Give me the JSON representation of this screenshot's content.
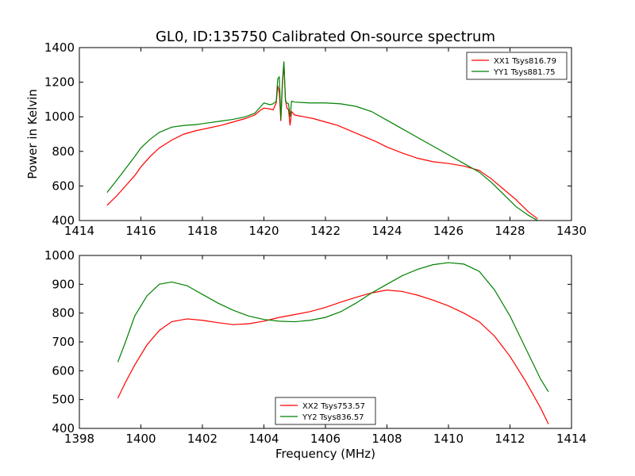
{
  "chart_data": [
    {
      "type": "line",
      "title": "GL0, ID:135750 Calibrated On-source spectrum",
      "xlabel": "",
      "ylabel": "Power in Kelvin",
      "xlim": [
        1414,
        1430
      ],
      "ylim": [
        400,
        1400
      ],
      "xticks": [
        1414,
        1416,
        1418,
        1420,
        1422,
        1424,
        1426,
        1428,
        1430
      ],
      "yticks": [
        400,
        600,
        800,
        1000,
        1200,
        1400
      ],
      "grid": false,
      "legend_position": "top-right",
      "series": [
        {
          "name": "XX1 Tsys816.79",
          "color": "#ff0000",
          "x": [
            1414.9,
            1415.2,
            1415.5,
            1415.8,
            1416.0,
            1416.3,
            1416.6,
            1417.0,
            1417.4,
            1417.8,
            1418.2,
            1418.6,
            1419.0,
            1419.4,
            1419.7,
            1419.9,
            1420.0,
            1420.2,
            1420.3,
            1420.4,
            1420.45,
            1420.5,
            1420.55,
            1420.6,
            1420.65,
            1420.7,
            1420.75,
            1420.8,
            1420.85,
            1420.9,
            1421.0,
            1421.3,
            1421.6,
            1422.0,
            1422.4,
            1422.8,
            1423.2,
            1423.6,
            1424.0,
            1424.5,
            1425.0,
            1425.5,
            1426.0,
            1426.5,
            1427.0,
            1427.4,
            1427.8,
            1428.2,
            1428.6,
            1428.9
          ],
          "y": [
            488,
            540,
            600,
            660,
            710,
            770,
            820,
            865,
            900,
            920,
            935,
            950,
            970,
            990,
            1010,
            1040,
            1050,
            1045,
            1040,
            1080,
            1180,
            1140,
            975,
            1180,
            1310,
            1100,
            1050,
            1040,
            950,
            1030,
            1010,
            1000,
            990,
            970,
            950,
            920,
            890,
            860,
            825,
            790,
            760,
            740,
            730,
            715,
            690,
            640,
            580,
            520,
            450,
            410
          ]
        },
        {
          "name": "YY1 Tsys881.75",
          "color": "#008000",
          "x": [
            1414.9,
            1415.2,
            1415.5,
            1415.8,
            1416.0,
            1416.3,
            1416.6,
            1417.0,
            1417.4,
            1417.8,
            1418.2,
            1418.6,
            1419.0,
            1419.4,
            1419.7,
            1419.9,
            1420.0,
            1420.2,
            1420.3,
            1420.4,
            1420.45,
            1420.5,
            1420.55,
            1420.6,
            1420.65,
            1420.7,
            1420.75,
            1420.8,
            1420.85,
            1420.9,
            1421.0,
            1421.5,
            1422.0,
            1422.5,
            1423.0,
            1423.5,
            1424.0,
            1424.5,
            1425.0,
            1425.5,
            1426.0,
            1426.5,
            1427.0,
            1427.4,
            1427.8,
            1428.2,
            1428.6,
            1428.9
          ],
          "y": [
            562,
            630,
            700,
            770,
            820,
            870,
            910,
            940,
            950,
            955,
            965,
            975,
            985,
            1000,
            1020,
            1060,
            1080,
            1070,
            1075,
            1090,
            1220,
            1230,
            985,
            1200,
            1320,
            1090,
            1080,
            1075,
            1000,
            1090,
            1085,
            1080,
            1080,
            1075,
            1060,
            1030,
            980,
            930,
            880,
            830,
            780,
            730,
            680,
            620,
            550,
            480,
            430,
            400
          ]
        }
      ]
    },
    {
      "type": "line",
      "title": "",
      "xlabel": "Frequency (MHz)",
      "ylabel": "",
      "xlim": [
        1398,
        1414
      ],
      "ylim": [
        400,
        1000
      ],
      "xticks": [
        1398,
        1400,
        1402,
        1404,
        1406,
        1408,
        1410,
        1412,
        1414
      ],
      "yticks": [
        400,
        500,
        600,
        700,
        800,
        900,
        1000
      ],
      "grid": false,
      "legend_position": "bottom-center",
      "series": [
        {
          "name": "XX2 Tsys753.57",
          "color": "#ff0000",
          "x": [
            1399.25,
            1399.5,
            1399.8,
            1400.2,
            1400.6,
            1401.0,
            1401.5,
            1402.0,
            1402.5,
            1403.0,
            1403.5,
            1404.0,
            1404.5,
            1405.0,
            1405.5,
            1406.0,
            1406.5,
            1407.0,
            1407.5,
            1408.0,
            1408.5,
            1409.0,
            1409.5,
            1410.0,
            1410.5,
            1411.0,
            1411.5,
            1412.0,
            1412.5,
            1413.0,
            1413.25
          ],
          "y": [
            505,
            560,
            620,
            690,
            740,
            770,
            780,
            775,
            767,
            760,
            763,
            772,
            785,
            795,
            805,
            820,
            838,
            855,
            870,
            880,
            875,
            862,
            845,
            825,
            800,
            770,
            720,
            650,
            565,
            470,
            415
          ]
        },
        {
          "name": "YY2 Tsys836.57",
          "color": "#008000",
          "x": [
            1399.25,
            1399.5,
            1399.8,
            1400.2,
            1400.6,
            1401.0,
            1401.5,
            1402.0,
            1402.5,
            1403.0,
            1403.5,
            1404.0,
            1404.5,
            1405.0,
            1405.5,
            1406.0,
            1406.5,
            1407.0,
            1407.5,
            1408.0,
            1408.5,
            1409.0,
            1409.5,
            1410.0,
            1410.5,
            1411.0,
            1411.5,
            1412.0,
            1412.5,
            1413.0,
            1413.25
          ],
          "y": [
            630,
            700,
            790,
            860,
            900,
            908,
            895,
            865,
            835,
            810,
            790,
            778,
            772,
            770,
            775,
            785,
            805,
            835,
            870,
            900,
            930,
            952,
            968,
            975,
            970,
            945,
            880,
            790,
            680,
            570,
            527
          ]
        }
      ]
    }
  ]
}
